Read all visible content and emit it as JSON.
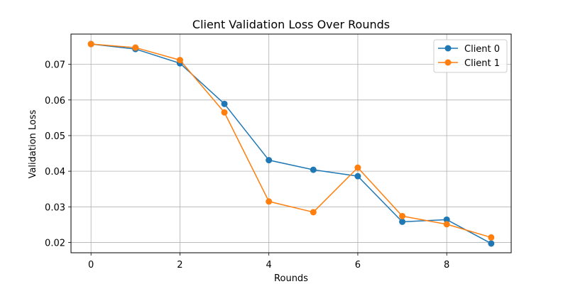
{
  "chart_data": {
    "type": "line",
    "title": "Client Validation Loss Over Rounds",
    "xlabel": "Rounds",
    "ylabel": "Validation Loss",
    "xlim": [
      -0.45,
      9.45
    ],
    "ylim": [
      0.0171,
      0.0785
    ],
    "xticks": [
      0,
      2,
      4,
      6,
      8
    ],
    "yticks": [
      0.02,
      0.03,
      0.04,
      0.05,
      0.06,
      0.07
    ],
    "grid": true,
    "legend_position": "top-right",
    "x": [
      0,
      1,
      2,
      3,
      4,
      5,
      6,
      7,
      8,
      9
    ],
    "series": [
      {
        "name": "Client 0",
        "color": "#1f77b4",
        "values": [
          0.0757,
          0.0743,
          0.0703,
          0.0589,
          0.0431,
          0.0404,
          0.0386,
          0.0258,
          0.0264,
          0.0197
        ]
      },
      {
        "name": "Client 1",
        "color": "#ff7f0e",
        "values": [
          0.0757,
          0.0747,
          0.0712,
          0.0565,
          0.0315,
          0.0285,
          0.041,
          0.0274,
          0.0251,
          0.0214
        ]
      }
    ]
  }
}
